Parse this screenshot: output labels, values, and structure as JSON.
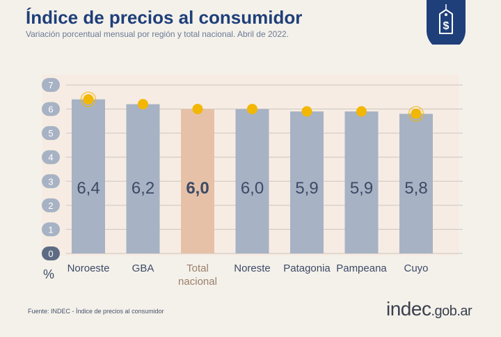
{
  "header": {
    "title": "Índice de precios al consumidor",
    "subtitle": "Variación porcentual mensual por región y total nacional. Abril de 2022."
  },
  "badge": {
    "icon": "price-tag-icon",
    "color": "#1f3f7a"
  },
  "footer": {
    "source": "Fuente: INDEC - Índice de precios al consumidor",
    "logo_main": "indec",
    "logo_domain": ".gob.ar"
  },
  "chart_data": {
    "type": "bar",
    "categories": [
      "Noroeste",
      "GBA",
      "Total nacional",
      "Noreste",
      "Patagonia",
      "Pampeana",
      "Cuyo"
    ],
    "values": [
      6.4,
      6.2,
      6.0,
      6.0,
      5.9,
      5.9,
      5.8
    ],
    "value_labels": [
      "6,4",
      "6,2",
      "6,0",
      "6,0",
      "5,9",
      "5,9",
      "5,8"
    ],
    "highlight_index": 2,
    "marker_ring": [
      true,
      false,
      false,
      false,
      false,
      false,
      true
    ],
    "ylabel": "%",
    "ylim": [
      0,
      7
    ],
    "yticks": [
      "0",
      "1",
      "2",
      "3",
      "4",
      "5",
      "6",
      "7"
    ],
    "grid": true,
    "colors": {
      "bar": "#a7b2c4",
      "bar_highlight": "#e6c1a8",
      "marker": "#f2b705",
      "label": "#3c4a66",
      "highlight_text": "#9a7f6c",
      "plot_bg": "#f7ece3"
    }
  }
}
